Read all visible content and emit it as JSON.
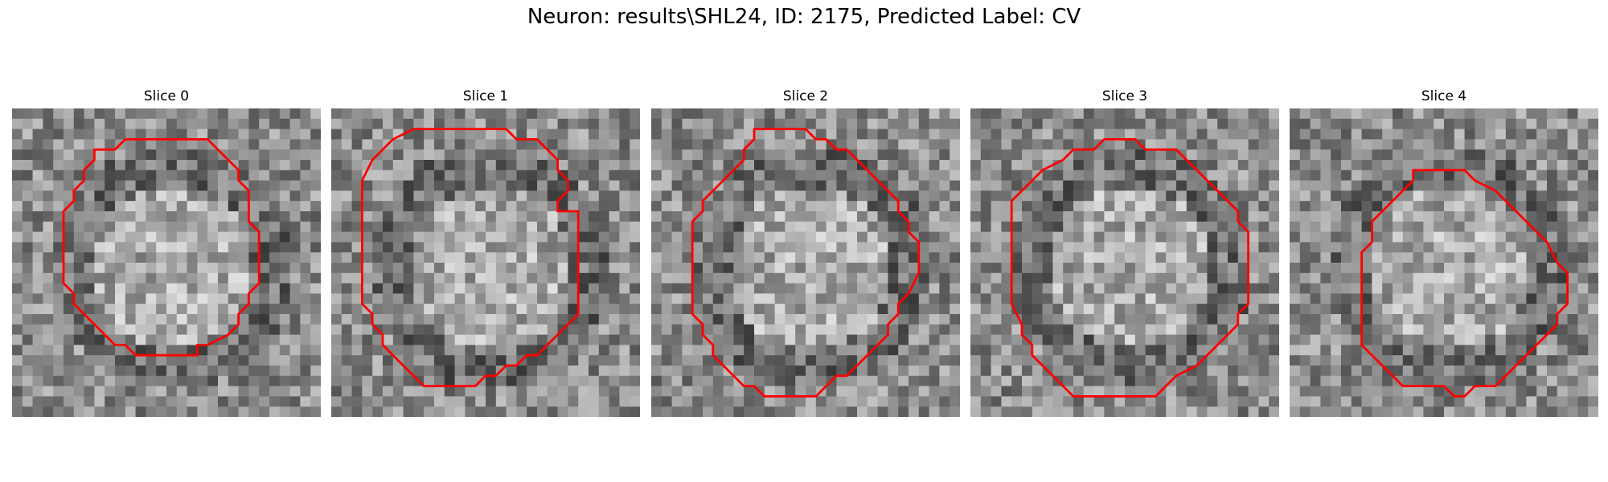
{
  "figure": {
    "title": "Neuron: results\\SHL24, ID: 2175, Predicted Label: CV",
    "contour_color": "#ff0000"
  },
  "slices": [
    {
      "label": "Slice 0"
    },
    {
      "label": "Slice 1"
    },
    {
      "label": "Slice 2"
    },
    {
      "label": "Slice 3"
    },
    {
      "label": "Slice 4"
    }
  ]
}
